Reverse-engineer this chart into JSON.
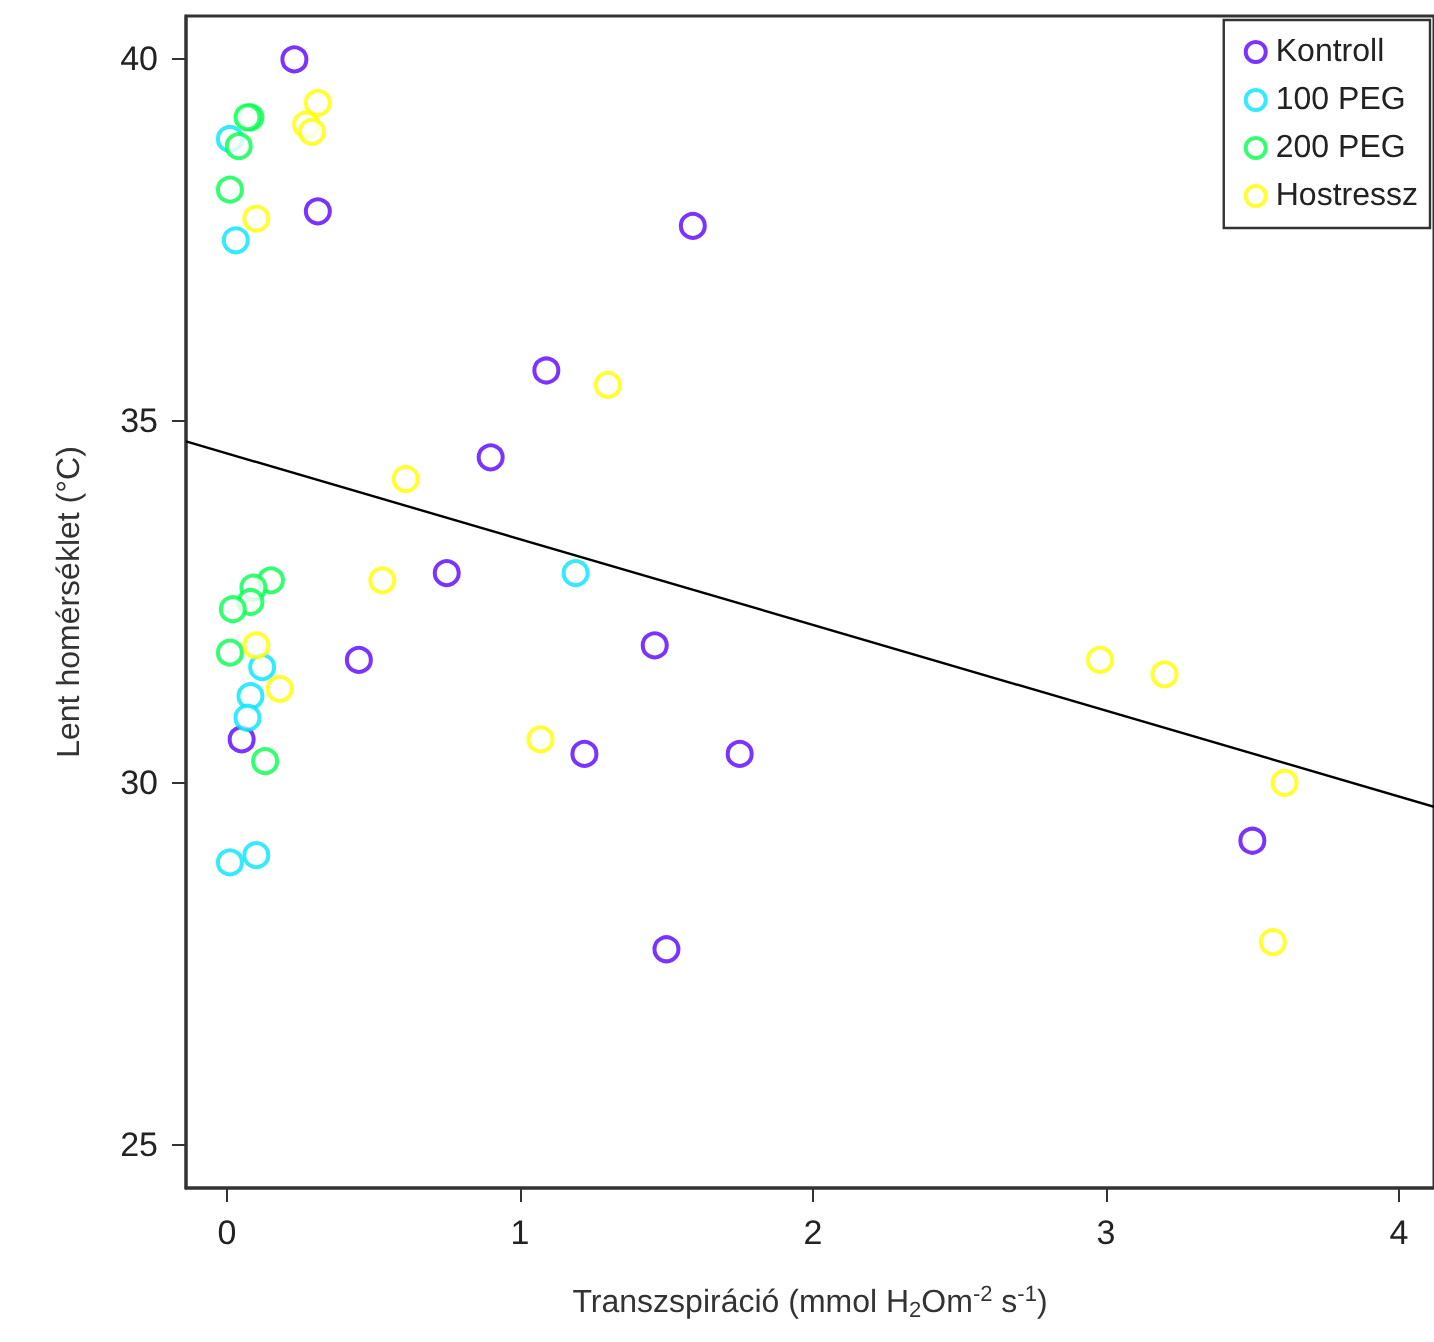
{
  "chart_data": {
    "type": "scatter",
    "xlabel": "Transzspiráció (mmol H$_{2}$Om$^{-2}$ s$^{-1}$)",
    "ylabel": "Lent homérséklet (°C)",
    "xlim": [
      -0.14,
      4.12
    ],
    "xticks": [
      0,
      1,
      2,
      3,
      4
    ],
    "ylim": [
      24.4,
      40.6
    ],
    "yticks": [
      25,
      30,
      35,
      40
    ],
    "grid": false,
    "legend": "top right",
    "marker": "circle",
    "series": [
      {
        "name": "Kontroll",
        "color": "#5a00ff",
        "x": [
          0.23,
          0.31,
          1.59,
          1.09,
          0.9,
          0.75,
          0.45,
          1.46,
          1.22,
          1.75,
          0.05,
          1.5,
          3.5
        ],
        "values": [
          40.0,
          37.9,
          37.7,
          35.7,
          34.5,
          32.9,
          31.7,
          31.9,
          30.4,
          30.4,
          30.6,
          27.7,
          29.2
        ]
      },
      {
        "name": "100 PEG",
        "color": "#00e5ff",
        "x": [
          0.01,
          0.03,
          1.19,
          0.12,
          0.08,
          0.07,
          0.01,
          0.1
        ],
        "values": [
          38.9,
          37.5,
          32.9,
          31.6,
          31.2,
          30.9,
          28.9,
          29.0
        ]
      },
      {
        "name": "200 PEG",
        "color": "#00ff4d",
        "x": [
          0.08,
          0.07,
          0.04,
          0.01,
          0.15,
          0.09,
          0.08,
          0.02,
          0.01,
          0.13
        ],
        "values": [
          39.2,
          39.2,
          38.8,
          38.2,
          32.8,
          32.7,
          32.5,
          32.4,
          31.8,
          30.3
        ]
      },
      {
        "name": "Hostressz",
        "color": "#ffff00",
        "x": [
          0.31,
          0.27,
          0.29,
          0.1,
          0.61,
          0.53,
          0.1,
          0.18,
          1.07,
          1.3,
          2.98,
          3.2,
          3.61,
          3.57
        ],
        "values": [
          39.4,
          39.1,
          39.0,
          37.8,
          34.2,
          32.8,
          31.9,
          31.3,
          30.6,
          35.5,
          31.7,
          31.5,
          30.0,
          27.8
        ]
      },
      {
        "type": "line",
        "color": "#000000",
        "marker": "none",
        "x": [
          -0.14,
          4.12
        ],
        "values": [
          34.72,
          29.67
        ]
      }
    ]
  }
}
